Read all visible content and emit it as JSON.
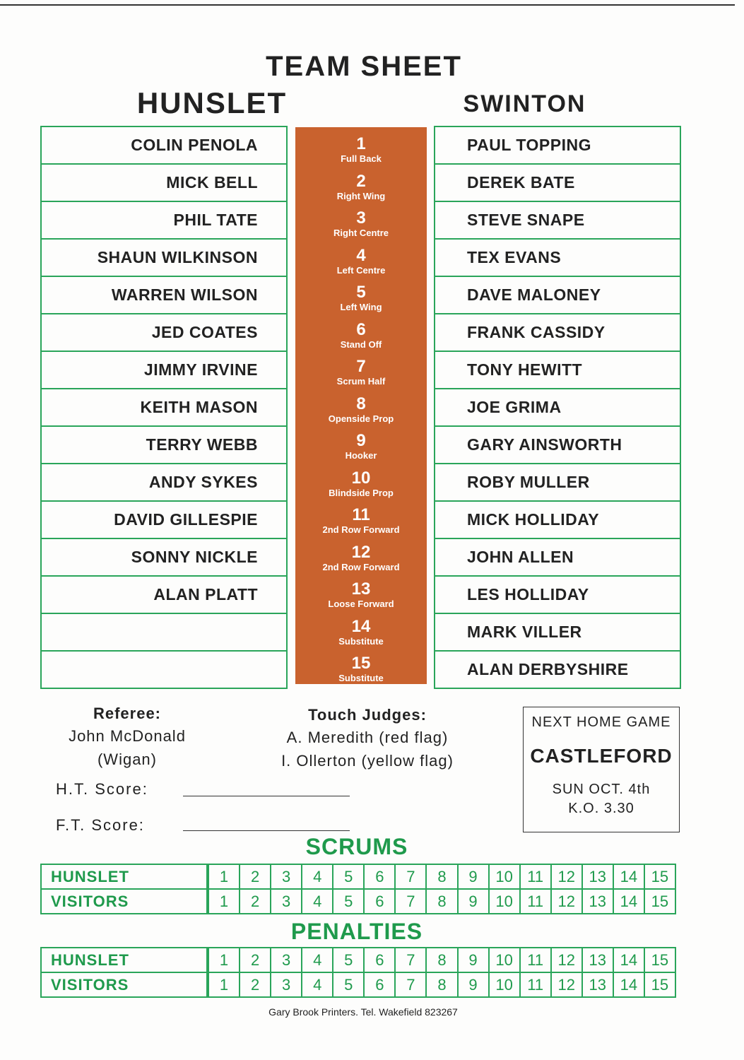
{
  "title": "TEAM SHEET",
  "home": {
    "name": "HUNSLET",
    "players": [
      "COLIN PENOLA",
      "MICK BELL",
      "PHIL TATE",
      "SHAUN WILKINSON",
      "WARREN WILSON",
      "JED COATES",
      "JIMMY IRVINE",
      "KEITH MASON",
      "TERRY WEBB",
      "ANDY SYKES",
      "DAVID GILLESPIE",
      "SONNY NICKLE",
      "ALAN PLATT",
      "",
      ""
    ]
  },
  "away": {
    "name": "SWINTON",
    "players": [
      "PAUL TOPPING",
      "DEREK BATE",
      "STEVE SNAPE",
      "TEX EVANS",
      "DAVE MALONEY",
      "FRANK CASSIDY",
      "TONY HEWITT",
      "JOE GRIMA",
      "GARY AINSWORTH",
      "ROBY MULLER",
      "MICK HOLLIDAY",
      "JOHN ALLEN",
      "LES HOLLIDAY",
      "MARK VILLER",
      "ALAN DERBYSHIRE"
    ]
  },
  "positions": [
    {
      "n": "1",
      "l": "Full Back"
    },
    {
      "n": "2",
      "l": "Right Wing"
    },
    {
      "n": "3",
      "l": "Right Centre"
    },
    {
      "n": "4",
      "l": "Left Centre"
    },
    {
      "n": "5",
      "l": "Left Wing"
    },
    {
      "n": "6",
      "l": "Stand Off"
    },
    {
      "n": "7",
      "l": "Scrum Half"
    },
    {
      "n": "8",
      "l": "Openside Prop"
    },
    {
      "n": "9",
      "l": "Hooker"
    },
    {
      "n": "10",
      "l": "Blindside Prop"
    },
    {
      "n": "11",
      "l": "2nd Row Forward"
    },
    {
      "n": "12",
      "l": "2nd Row Forward"
    },
    {
      "n": "13",
      "l": "Loose Forward"
    },
    {
      "n": "14",
      "l": "Substitute"
    },
    {
      "n": "15",
      "l": "Substitute"
    }
  ],
  "officials": {
    "referee_label": "Referee:",
    "referee_name": "John McDonald",
    "referee_club": "(Wigan)",
    "touch_label": "Touch Judges:",
    "touch_1": "A. Meredith (red flag)",
    "touch_2": "I. Ollerton (yellow flag)"
  },
  "scores": {
    "ht": "H.T. Score:",
    "ft": "F.T. Score:"
  },
  "next_game": {
    "label": "NEXT HOME GAME",
    "opponent": "CASTLEFORD",
    "date": "SUN OCT. 4th",
    "ko": "K.O. 3.30"
  },
  "scrums": {
    "title": "SCRUMS",
    "rows": [
      "HUNSLET",
      "VISITORS"
    ]
  },
  "penalties": {
    "title": "PENALTIES",
    "rows": [
      "HUNSLET",
      "VISITORS"
    ]
  },
  "cells": [
    "1",
    "2",
    "3",
    "4",
    "5",
    "6",
    "7",
    "8",
    "9",
    "10",
    "11",
    "12",
    "13",
    "14",
    "15"
  ],
  "footer": "Gary Brook Printers. Tel. Wakefield 823267",
  "colors": {
    "green": "#2aa55a",
    "orange": "#c9622e"
  }
}
